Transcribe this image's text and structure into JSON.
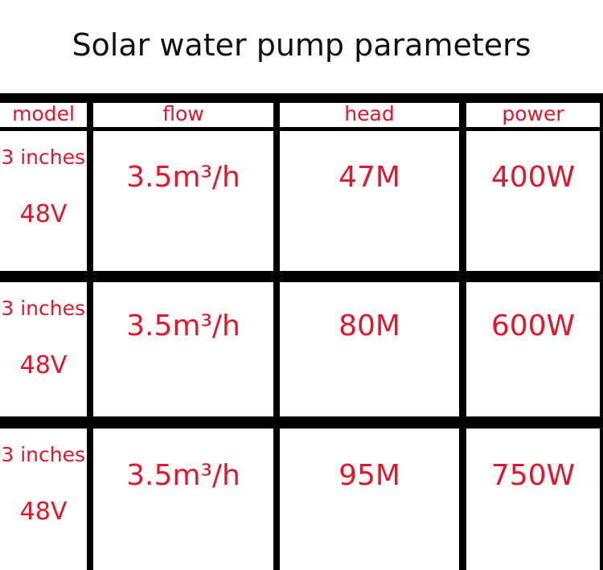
{
  "title": "Solar water pump parameters",
  "table": {
    "header": [
      "model",
      "flow",
      "head",
      "power"
    ],
    "rows": [
      {
        "model": [
          "3 inches",
          "48V"
        ],
        "flow": "3.5m³/h",
        "head": "47M",
        "power": "400W"
      },
      {
        "model": [
          "3 inches",
          "48V"
        ],
        "flow": "3.5m³/h",
        "head": "80M",
        "power": "600W"
      },
      {
        "model": [
          "3 inches",
          "48V"
        ],
        "flow": "3.5m³/h",
        "head": "95M",
        "power": "750W"
      }
    ]
  }
}
